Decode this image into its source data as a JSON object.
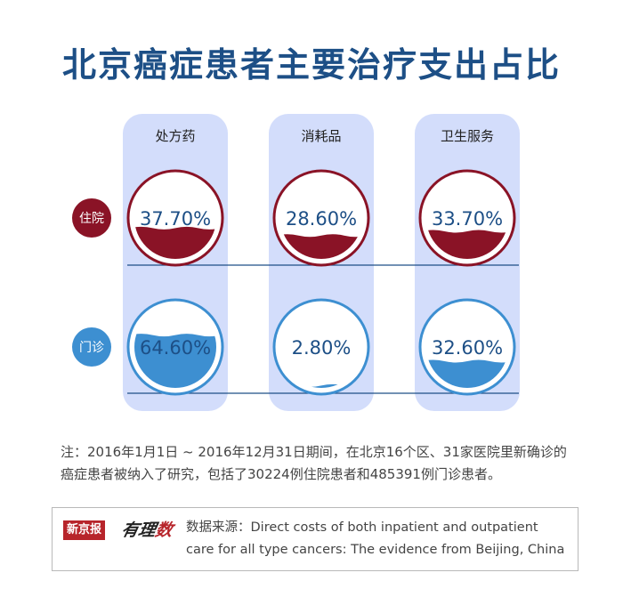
{
  "title": "北京癌症患者主要治疗支出占比",
  "chart_data": {
    "type": "bubble-matrix",
    "title": "北京癌症患者主要治疗支出占比",
    "categories": [
      "处方药",
      "消耗品",
      "卫生服务"
    ],
    "series": [
      {
        "name": "住院",
        "values": [
          37.7,
          28.6,
          33.7
        ],
        "labels": [
          "37.70%",
          "28.60%",
          "33.70%"
        ],
        "color": "#8a1326"
      },
      {
        "name": "门诊",
        "values": [
          64.6,
          2.8,
          32.6
        ],
        "labels": [
          "64.60%",
          "2.80%",
          "32.60%"
        ],
        "color": "#3d8fd1"
      }
    ],
    "unit": "%"
  },
  "colors": {
    "title": "#1d4f86",
    "column_bg": "#d3ddfb",
    "inpatient": "#8a1326",
    "outpatient": "#3d8fd1",
    "divider": "#1d4f86",
    "value_text": "#1d4f86"
  },
  "note": {
    "line1": "注：2016年1月1日 ~ 2016年12月31日期间，在北京16个区、31家医院里新确诊的",
    "line2": "癌症患者被纳入了研究，包括了30224例住院患者和485391例门诊患者。"
  },
  "source": {
    "logo_paper": "新京报",
    "logo_script_a": "有理",
    "logo_script_b": "数",
    "line1": "数据来源：Direct costs of both inpatient and outpatient",
    "line2": "care for all type cancers: The evidence from Beijing, China"
  }
}
